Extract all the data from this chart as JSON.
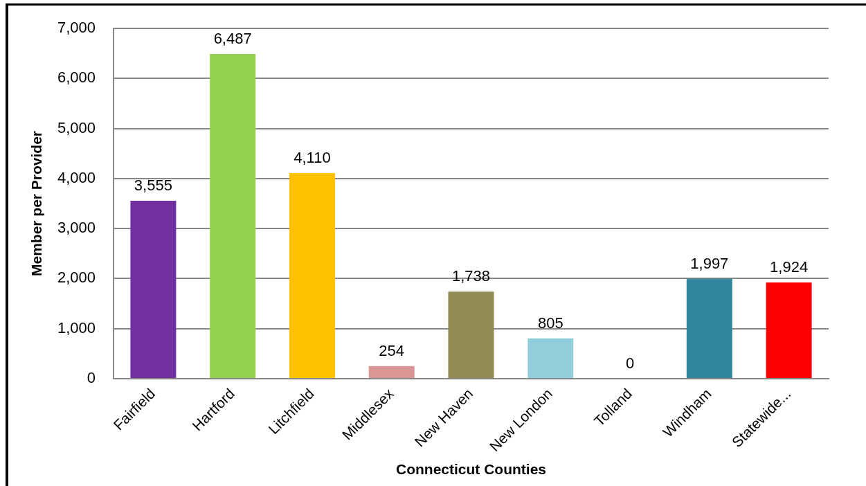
{
  "chart_data": {
    "type": "bar",
    "xlabel": "Connecticut Counties",
    "ylabel": "Member per Provider",
    "categories": [
      "Fairfield",
      "Hartford",
      "Litchfield",
      "Middlesex",
      "New Haven",
      "New London",
      "Tolland",
      "Windham",
      "Statewide..."
    ],
    "values": [
      3555,
      6487,
      4110,
      254,
      1738,
      805,
      0,
      1997,
      1924
    ],
    "colors": [
      "#7030a0",
      "#92d050",
      "#ffc000",
      "#da9694",
      "#948a54",
      "#92cddc",
      "#4f81bd",
      "#31859c",
      "#ff0000"
    ],
    "value_labels": [
      "3,555",
      "6,487",
      "4,110",
      "254",
      "1,738",
      "805",
      "0",
      "1,997",
      "1,924"
    ],
    "ylim": [
      0,
      7000
    ],
    "yticks": [
      0,
      {
        "value": 1000,
        "label": "1,000"
      },
      {
        "value": 2000,
        "label": "2,000"
      },
      {
        "value": 3000,
        "label": "3,000"
      },
      {
        "value": 4000,
        "label": "4,000"
      },
      {
        "value": 5000,
        "label": "5,000"
      },
      {
        "value": 6000,
        "label": "6,000"
      },
      {
        "value": 7000,
        "label": "7,000"
      }
    ],
    "grid": "y"
  }
}
